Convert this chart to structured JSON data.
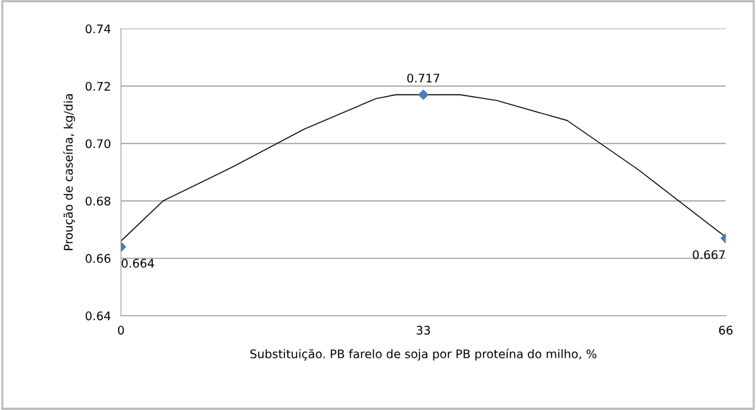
{
  "chart_data": {
    "type": "scatter",
    "xlabel": "Substituição. PB farelo de soja por PB proteína do milho, %",
    "ylabel": "Proução de caseína, kg/dia",
    "series": [
      {
        "color": "#4a7ebb",
        "marker": "diamond",
        "data_labels": true,
        "x": [
          0,
          33,
          66
        ],
        "values": [
          0.664,
          0.717,
          0.667
        ]
      },
      {
        "type": "line",
        "color": "#000000",
        "marker": "none",
        "x": [
          0,
          4.6,
          12.3,
          20,
          27.8,
          30,
          37,
          41,
          48.7,
          56.4,
          66
        ],
        "values": [
          0.666,
          0.68,
          0.692,
          0.705,
          0.7156,
          0.717,
          0.717,
          0.715,
          0.708,
          0.691,
          0.6674
        ]
      }
    ],
    "xlim": [
      0,
      66
    ],
    "xticks": [
      0,
      33,
      66
    ],
    "ylim": [
      0.64,
      0.74
    ],
    "yticks": [
      {
        "value": 0.64,
        "label": "0.64"
      },
      {
        "value": 0.66,
        "label": "0.66"
      },
      {
        "value": 0.68,
        "label": "0.68"
      },
      {
        "value": 0.7,
        "label": "0.70"
      },
      {
        "value": 0.72,
        "label": "0.72"
      },
      {
        "value": 0.74,
        "label": "0.74"
      }
    ],
    "grid": "y",
    "legend": false
  }
}
